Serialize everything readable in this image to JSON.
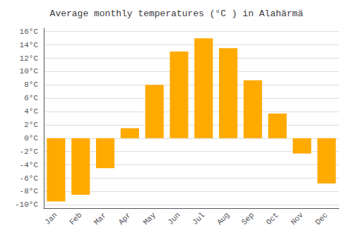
{
  "chart_data": {
    "type": "bar",
    "title": "Average monthly temperatures (°C ) in Alahärmä",
    "categories": [
      "Jan",
      "Feb",
      "Mar",
      "Apr",
      "May",
      "Jun",
      "Jul",
      "Aug",
      "Sep",
      "Oct",
      "Nov",
      "Dec"
    ],
    "values": [
      -9.5,
      -8.5,
      -4.5,
      1.5,
      8.0,
      13.0,
      15.0,
      13.5,
      8.7,
      3.7,
      -2.3,
      -6.8
    ],
    "color": "#FFAA00",
    "ylim": [
      -10.5,
      16.5
    ],
    "yticks": [
      {
        "value": -10,
        "label": "-10°C"
      },
      {
        "value": -8,
        "label": "-8°C"
      },
      {
        "value": -6,
        "label": "-6°C"
      },
      {
        "value": -4,
        "label": "-4°C"
      },
      {
        "value": -2,
        "label": "-2°C"
      },
      {
        "value": 0,
        "label": "0°C"
      },
      {
        "value": 2,
        "label": "2°C"
      },
      {
        "value": 4,
        "label": "4°C"
      },
      {
        "value": 6,
        "label": "6°C"
      },
      {
        "value": 8,
        "label": "8°C"
      },
      {
        "value": 10,
        "label": "10°C"
      },
      {
        "value": 12,
        "label": "12°C"
      },
      {
        "value": 14,
        "label": "14°C"
      },
      {
        "value": 16,
        "label": "16°C"
      }
    ],
    "grid": true
  }
}
